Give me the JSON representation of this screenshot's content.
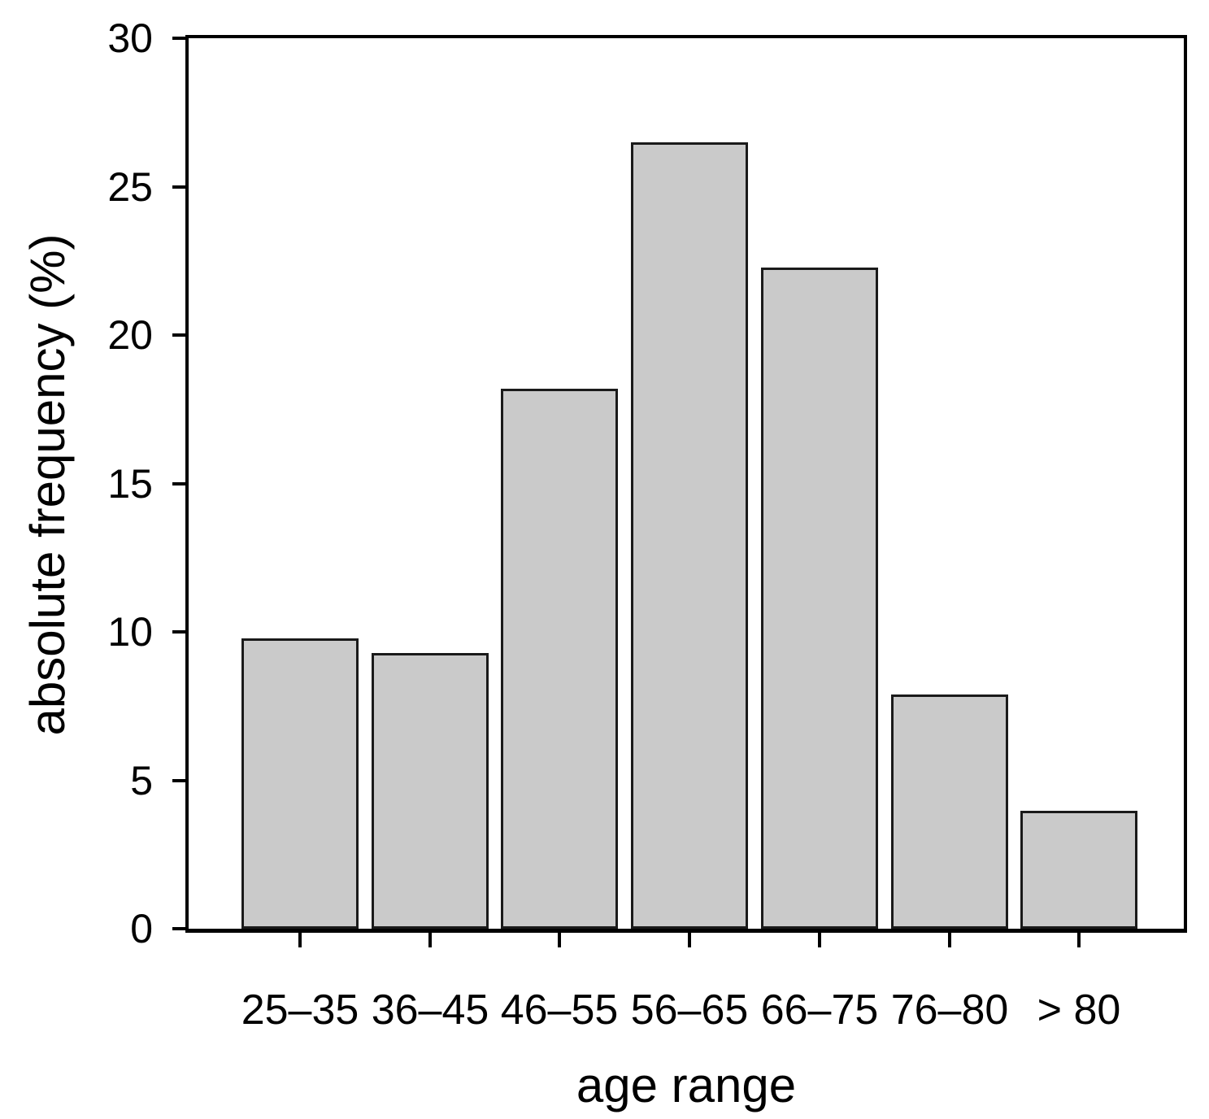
{
  "chart_data": {
    "type": "bar",
    "title": "",
    "xlabel": "age range",
    "ylabel": "absolute frequency (%)",
    "categories": [
      "25–35",
      "36–45",
      "46–55",
      "56–65",
      "66–75",
      "76–80",
      "> 80"
    ],
    "values": [
      9.7,
      9.2,
      18.1,
      26.4,
      22.2,
      7.8,
      3.9
    ],
    "ylim": [
      0,
      30
    ],
    "yticks": [
      0,
      5,
      10,
      15,
      20,
      25,
      30
    ],
    "legend": "none",
    "grid": "off",
    "bar_fill_color": "#cacaca",
    "bar_border_color": "#1a1a1a",
    "axis_color": "#000000",
    "background_color": "#ffffff"
  }
}
